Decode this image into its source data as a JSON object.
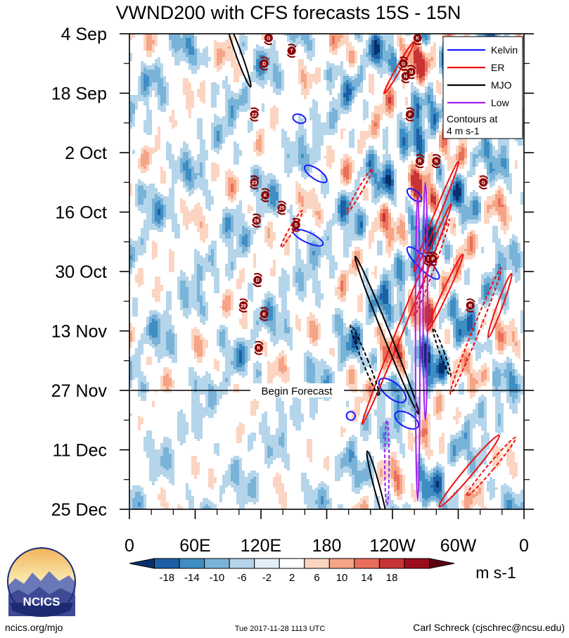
{
  "chart_data": {
    "type": "heatmap",
    "title": "VWND200 with CFS forecasts  15S - 15N",
    "x_tick_labels": [
      "0",
      "60E",
      "120E",
      "180",
      "120W",
      "60W",
      "0"
    ],
    "x_range_deg_east": [
      0,
      360
    ],
    "y_tick_labels": [
      "4 Sep",
      "18 Sep",
      "2 Oct",
      "16 Oct",
      "30 Oct",
      "13 Nov",
      "27 Nov",
      "11 Dec",
      "25 Dec"
    ],
    "y_range_days_from_4sep": [
      0,
      112
    ],
    "forecast_start_day": 84,
    "forecast_label": "Begin Forecast",
    "legend": {
      "entries": [
        {
          "name": "Kelvin",
          "color": "#1a1aff"
        },
        {
          "name": "ER",
          "color": "#ee1111"
        },
        {
          "name": "MJO",
          "color": "#000000"
        },
        {
          "name": "Low",
          "color": "#a020f0"
        }
      ],
      "note_line1": "Contours at",
      "note_line2": "4 m s-1"
    },
    "colorbar": {
      "levels": [
        "-18",
        "-14",
        "-10",
        "-6",
        "-2",
        "2",
        "6",
        "10",
        "14",
        "18"
      ],
      "colors": [
        "#08306b",
        "#1c5fa6",
        "#3e8ec4",
        "#7ab3d8",
        "#b5d5ea",
        "#e2eef7",
        "#ffffff",
        "#fbd5c2",
        "#f6a486",
        "#e8705a",
        "#c83336",
        "#9b0d1b",
        "#5e0013"
      ],
      "units": "m s-1"
    },
    "contours": [
      {
        "type": "Kelvin",
        "lon": 155,
        "day": 20,
        "rx": 6,
        "ry": 1,
        "angle": 20,
        "dashed": false
      },
      {
        "type": "Kelvin",
        "lon": 170,
        "day": 33,
        "rx": 12,
        "ry": 1.2,
        "angle": 35,
        "dashed": false
      },
      {
        "type": "Kelvin",
        "lon": 163,
        "day": 48,
        "rx": 15,
        "ry": 1.2,
        "angle": 25,
        "dashed": false
      },
      {
        "type": "Kelvin",
        "lon": 260,
        "day": 38,
        "rx": 8,
        "ry": 1,
        "angle": 40,
        "dashed": false
      },
      {
        "type": "Kelvin",
        "lon": 268,
        "day": 54,
        "rx": 20,
        "ry": 1.4,
        "angle": 45,
        "dashed": false
      },
      {
        "type": "Kelvin",
        "lon": 240,
        "day": 84,
        "rx": 15,
        "ry": 1.8,
        "angle": 40,
        "dashed": false
      },
      {
        "type": "Kelvin",
        "lon": 253,
        "day": 91,
        "rx": 12,
        "ry": 1.6,
        "angle": 30,
        "dashed": false
      },
      {
        "type": "Kelvin",
        "lon": 202,
        "day": 90,
        "rx": 4,
        "ry": 1,
        "angle": 30,
        "dashed": false
      },
      {
        "type": "ER",
        "lon": 246,
        "day": 8,
        "rx": 2,
        "ry": 7,
        "angle": 30,
        "dashed": false
      },
      {
        "type": "ER",
        "lon": 280,
        "day": 43,
        "rx": 2.5,
        "ry": 14,
        "angle": 22,
        "dashed": false
      },
      {
        "type": "ER",
        "lon": 276,
        "day": 55,
        "rx": 2.2,
        "ry": 12,
        "angle": 20,
        "dashed": true
      },
      {
        "type": "ER",
        "lon": 253,
        "day": 66,
        "rx": 3,
        "ry": 28,
        "angle": 22,
        "dashed": false
      },
      {
        "type": "ER",
        "lon": 288,
        "day": 61,
        "rx": 2.5,
        "ry": 10,
        "angle": 25,
        "dashed": false
      },
      {
        "type": "ER",
        "lon": 316,
        "day": 70,
        "rx": 3,
        "ry": 16,
        "angle": 22,
        "dashed": true
      },
      {
        "type": "ER",
        "lon": 338,
        "day": 64,
        "rx": 2.5,
        "ry": 8,
        "angle": 20,
        "dashed": false
      },
      {
        "type": "ER",
        "lon": 310,
        "day": 103,
        "rx": 4,
        "ry": 11,
        "angle": 40,
        "dashed": false
      },
      {
        "type": "ER",
        "lon": 330,
        "day": 102,
        "rx": 3,
        "ry": 9,
        "angle": 40,
        "dashed": true
      },
      {
        "type": "ER",
        "lon": 210,
        "day": 37,
        "rx": 2,
        "ry": 6,
        "angle": 30,
        "dashed": true
      },
      {
        "type": "ER",
        "lon": 148,
        "day": 46,
        "rx": 2,
        "ry": 5,
        "angle": 30,
        "dashed": true
      },
      {
        "type": "MJO",
        "lon": 100,
        "day": 5,
        "rx": 2.6,
        "ry": 8,
        "angle": -20,
        "dashed": false
      },
      {
        "type": "MJO",
        "lon": 235,
        "day": 71,
        "rx": 3.2,
        "ry": 20,
        "angle": -22,
        "dashed": false
      },
      {
        "type": "MJO",
        "lon": 215,
        "day": 77,
        "rx": 2.5,
        "ry": 9,
        "angle": -22,
        "dashed": true
      },
      {
        "type": "MJO",
        "lon": 226,
        "day": 107,
        "rx": 2.6,
        "ry": 9,
        "angle": -15,
        "dashed": false
      },
      {
        "type": "MJO",
        "lon": 285,
        "day": 75,
        "rx": 2,
        "ry": 6,
        "angle": -20,
        "dashed": true
      },
      {
        "type": "Low",
        "lon": 263,
        "day": 74,
        "rx": 2,
        "ry": 36,
        "angle": 0,
        "dashed": false
      },
      {
        "type": "Low",
        "lon": 270,
        "day": 63,
        "rx": 2,
        "ry": 28,
        "angle": 0,
        "dashed": false
      },
      {
        "type": "Low",
        "lon": 235,
        "day": 101,
        "rx": 2,
        "ry": 10,
        "angle": 0,
        "dashed": true
      }
    ],
    "storm_markers": [
      {
        "label": "G",
        "lon": 127,
        "day": 1
      },
      {
        "label": "T",
        "lon": 148,
        "day": 4
      },
      {
        "label": "D",
        "lon": 123,
        "day": 7
      },
      {
        "label": "K",
        "lon": 263,
        "day": 1
      },
      {
        "label": "G",
        "lon": 250,
        "day": 7
      },
      {
        "label": "M",
        "lon": 257,
        "day": 9
      },
      {
        "label": "N",
        "lon": 252,
        "day": 10
      },
      {
        "label": "22",
        "lon": 114,
        "day": 19
      },
      {
        "label": "P",
        "lon": 256,
        "day": 19
      },
      {
        "label": "R",
        "lon": 265,
        "day": 30
      },
      {
        "label": "N",
        "lon": 280,
        "day": 30
      },
      {
        "label": "23",
        "lon": 114,
        "day": 35
      },
      {
        "label": "G",
        "lon": 323,
        "day": 35
      },
      {
        "label": "K",
        "lon": 124,
        "day": 38
      },
      {
        "label": "25",
        "lon": 139,
        "day": 41
      },
      {
        "label": "26",
        "lon": 116,
        "day": 44
      },
      {
        "label": "S",
        "lon": 152,
        "day": 45
      },
      {
        "label": "S",
        "lon": 273,
        "day": 53
      },
      {
        "label": "P",
        "lon": 277,
        "day": 53
      },
      {
        "label": "D",
        "lon": 117,
        "day": 58
      },
      {
        "label": "29",
        "lon": 104,
        "day": 64
      },
      {
        "label": "R",
        "lon": 311,
        "day": 64
      },
      {
        "label": "K",
        "lon": 123,
        "day": 66
      },
      {
        "label": "K",
        "lon": 118,
        "day": 74
      }
    ]
  },
  "footer": {
    "logo_text": "NCICS",
    "website": "ncics.org/mjo",
    "timestamp": "Tue 2017-11-28 1113 UTC",
    "credit": "Carl Schreck (cjschrec@ncsu.edu)"
  }
}
